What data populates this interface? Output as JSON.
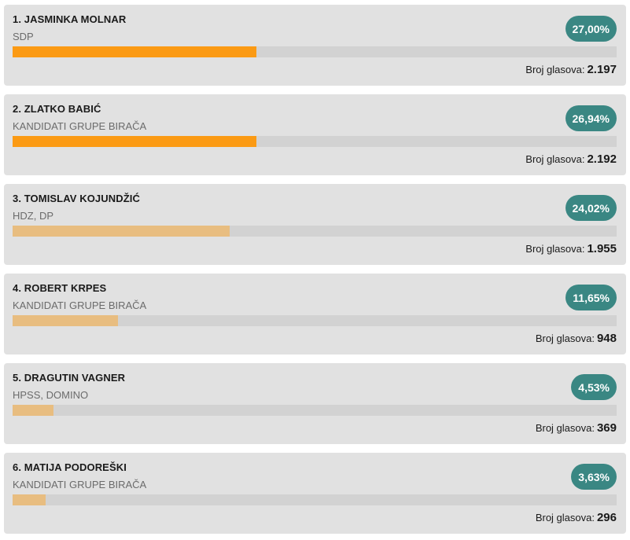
{
  "results": {
    "votes_label": "Broj glasova:",
    "colors": {
      "leader_bar": "#fb9a14",
      "other_bar": "#e8bd80",
      "badge": "#3a8783",
      "card": "#e1e1e1",
      "track": "#d2d2d2"
    },
    "candidates": [
      {
        "name": "1. JASMINKA MOLNAR",
        "party": "SDP",
        "percent": "27,00%",
        "votes": "2.197",
        "bar_fraction": 0.403,
        "leader": true
      },
      {
        "name": "2. ZLATKO BABIĆ",
        "party": "KANDIDATI GRUPE BIRAČA",
        "percent": "26,94%",
        "votes": "2.192",
        "bar_fraction": 0.403,
        "leader": true
      },
      {
        "name": "3. TOMISLAV KOJUNDŽIĆ",
        "party": "HDZ, DP",
        "percent": "24,02%",
        "votes": "1.955",
        "bar_fraction": 0.359,
        "leader": false
      },
      {
        "name": "4. ROBERT KRPES",
        "party": "KANDIDATI GRUPE BIRAČA",
        "percent": "11,65%",
        "votes": "948",
        "bar_fraction": 0.174,
        "leader": false
      },
      {
        "name": "5. DRAGUTIN VAGNER",
        "party": "HPSS, DOMINO",
        "percent": "4,53%",
        "votes": "369",
        "bar_fraction": 0.068,
        "leader": false
      },
      {
        "name": "6. MATIJA PODOREŠKI",
        "party": "KANDIDATI GRUPE BIRAČA",
        "percent": "3,63%",
        "votes": "296",
        "bar_fraction": 0.055,
        "leader": false
      }
    ]
  }
}
